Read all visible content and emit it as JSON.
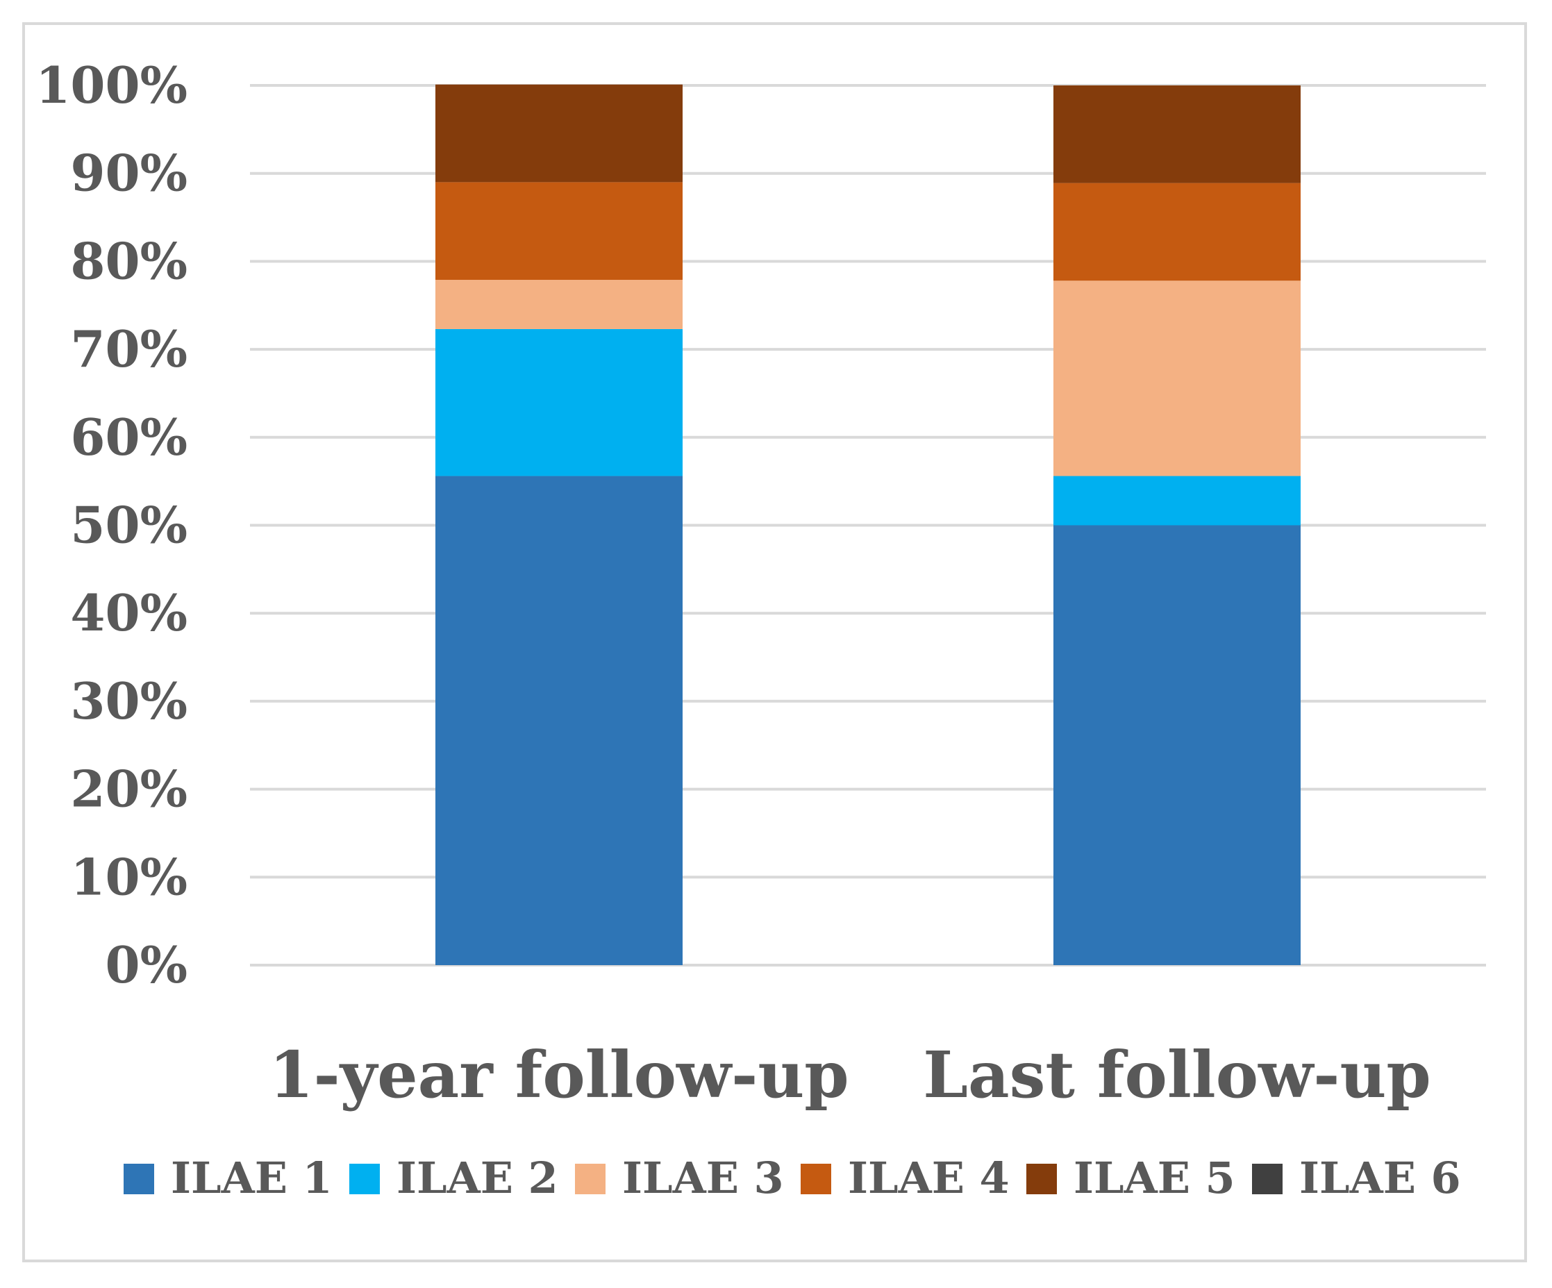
{
  "chart_data": {
    "type": "bar",
    "stacked": true,
    "title": "",
    "xlabel": "",
    "ylabel": "",
    "ylim": [
      0,
      100
    ],
    "y_ticks": [
      "0%",
      "10%",
      "20%",
      "30%",
      "40%",
      "50%",
      "60%",
      "70%",
      "80%",
      "90%",
      "100%"
    ],
    "categories": [
      "1-year follow-up",
      "Last follow-up"
    ],
    "series": [
      {
        "name": "ILAE 1",
        "color": "#2e75b6",
        "values": [
          55.6,
          50.0
        ]
      },
      {
        "name": "ILAE 2",
        "color": "#00b0f0",
        "values": [
          16.7,
          5.6
        ]
      },
      {
        "name": "ILAE 3",
        "color": "#f4b183",
        "values": [
          5.6,
          22.2
        ]
      },
      {
        "name": "ILAE 4",
        "color": "#c55a11",
        "values": [
          11.1,
          11.1
        ]
      },
      {
        "name": "ILAE 5",
        "color": "#843c0c",
        "values": [
          11.1,
          11.1
        ]
      },
      {
        "name": "ILAE 6",
        "color": "#404040",
        "values": [
          0,
          0
        ]
      }
    ],
    "grid": true,
    "legend_position": "bottom"
  }
}
